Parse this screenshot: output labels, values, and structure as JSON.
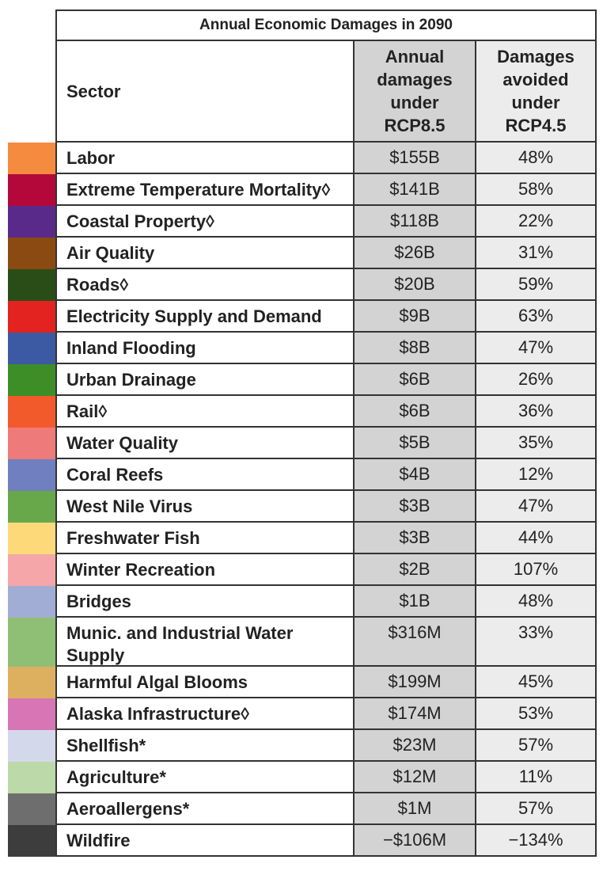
{
  "chart_data": {
    "type": "table",
    "title": "Annual Economic Damages in 2090",
    "columns": [
      "Sector",
      "Annual\ndamages\nunder\nRCP8.5",
      "Damages\navoided\nunder\nRCP4.5"
    ],
    "rows": [
      {
        "sector": "Labor",
        "damages": "$155B",
        "avoided": "48%",
        "color": "#f58b3f"
      },
      {
        "sector": "Extreme Temperature Mortality◊",
        "damages": "$141B",
        "avoided": "58%",
        "color": "#b5083a"
      },
      {
        "sector": "Coastal Property◊",
        "damages": "$118B",
        "avoided": "22%",
        "color": "#5a2a8a"
      },
      {
        "sector": "Air Quality",
        "damages": "$26B",
        "avoided": "31%",
        "color": "#8b4a12"
      },
      {
        "sector": "Roads◊",
        "damages": "$20B",
        "avoided": "59%",
        "color": "#2a4d17"
      },
      {
        "sector": "Electricity Supply and Demand",
        "damages": "$9B",
        "avoided": "63%",
        "color": "#e2231f"
      },
      {
        "sector": "Inland Flooding",
        "damages": "$8B",
        "avoided": "47%",
        "color": "#3b5aa3"
      },
      {
        "sector": "Urban Drainage",
        "damages": "$6B",
        "avoided": "26%",
        "color": "#3e8e27"
      },
      {
        "sector": "Rail◊",
        "damages": "$6B",
        "avoided": "36%",
        "color": "#f25a2c"
      },
      {
        "sector": "Water Quality",
        "damages": "$5B",
        "avoided": "35%",
        "color": "#ee7a7a"
      },
      {
        "sector": "Coral Reefs",
        "damages": "$4B",
        "avoided": "12%",
        "color": "#6f7fbf"
      },
      {
        "sector": "West Nile Virus",
        "damages": "$3B",
        "avoided": "47%",
        "color": "#68a84a"
      },
      {
        "sector": "Freshwater Fish",
        "damages": "$3B",
        "avoided": "44%",
        "color": "#fdd97a"
      },
      {
        "sector": "Winter Recreation",
        "damages": "$2B",
        "avoided": "107%",
        "color": "#f4a6a8"
      },
      {
        "sector": "Bridges",
        "damages": "$1B",
        "avoided": "48%",
        "color": "#a2add6"
      },
      {
        "sector": "Munic. and Industrial Water Supply",
        "damages": "$316M",
        "avoided": "33%",
        "color": "#8fbf74"
      },
      {
        "sector": "Harmful Algal Blooms",
        "damages": "$199M",
        "avoided": "45%",
        "color": "#ddb060"
      },
      {
        "sector": "Alaska Infrastructure◊",
        "damages": "$174M",
        "avoided": "53%",
        "color": "#d775b5"
      },
      {
        "sector": "Shellfish*",
        "damages": "$23M",
        "avoided": "57%",
        "color": "#d3d9ea"
      },
      {
        "sector": "Agriculture*",
        "damages": "$12M",
        "avoided": "11%",
        "color": "#bcd9aa"
      },
      {
        "sector": "Aeroallergens*",
        "damages": "$1M",
        "avoided": "57%",
        "color": "#6e6e6e"
      },
      {
        "sector": "Wildfire",
        "damages": "−$106M",
        "avoided": "−134%",
        "color": "#3d3d3d"
      }
    ]
  }
}
